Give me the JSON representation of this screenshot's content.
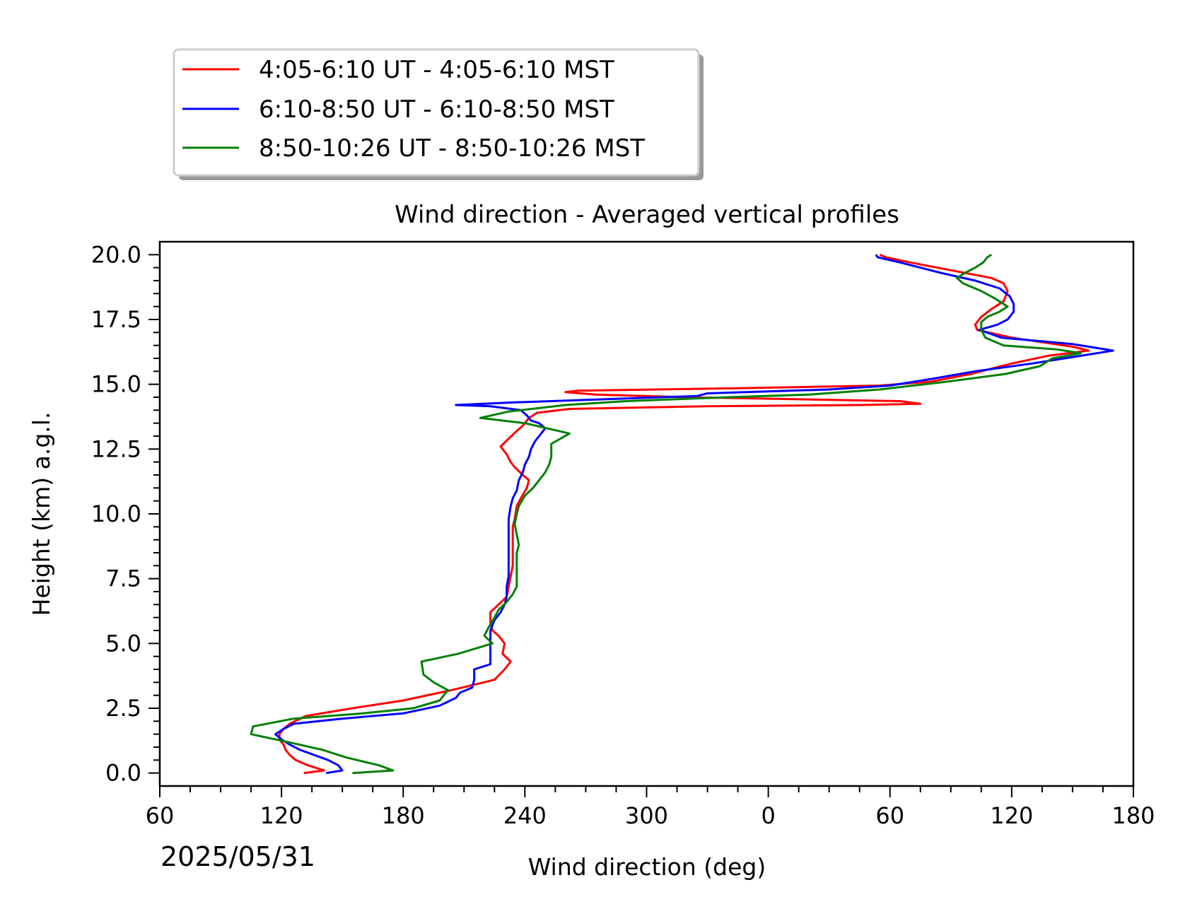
{
  "chart_data": {
    "type": "line",
    "title": "Wind direction - Averaged vertical profiles",
    "xlabel": "Wind direction (deg)",
    "ylabel": "Height (km) a.g.l.",
    "date_label": "2025/05/31",
    "x_tick_labels": [
      "60",
      "120",
      "180",
      "240",
      "300",
      "0",
      "60",
      "120",
      "180"
    ],
    "y_tick_labels": [
      "0.0",
      "2.5",
      "5.0",
      "7.5",
      "10.0",
      "12.5",
      "15.0",
      "17.5",
      "20.0"
    ],
    "x_unwrapped_range": [
      60,
      540
    ],
    "ylim": [
      -0.5,
      20.5
    ],
    "grid": false,
    "legend_position": "above-left",
    "series": [
      {
        "name": "4:05-6:10 UT - 4:05-6:10 MST",
        "color": "#ff0000",
        "points": [
          [
            131,
            0.0
          ],
          [
            141,
            0.1
          ],
          [
            133,
            0.3
          ],
          [
            127,
            0.5
          ],
          [
            124,
            0.7
          ],
          [
            122,
            0.9
          ],
          [
            121,
            1.1
          ],
          [
            119,
            1.3
          ],
          [
            119,
            1.5
          ],
          [
            121,
            1.7
          ],
          [
            124,
            1.9
          ],
          [
            132,
            2.2
          ],
          [
            155,
            2.5
          ],
          [
            180,
            2.8
          ],
          [
            204,
            3.2
          ],
          [
            225,
            3.6
          ],
          [
            230,
            4.0
          ],
          [
            233,
            4.3
          ],
          [
            229,
            4.6
          ],
          [
            230,
            5.0
          ],
          [
            227,
            5.3
          ],
          [
            224,
            5.5
          ],
          [
            223,
            5.8
          ],
          [
            223,
            6.2
          ],
          [
            227,
            6.5
          ],
          [
            231,
            6.8
          ],
          [
            232,
            7.2
          ],
          [
            233,
            7.6
          ],
          [
            234,
            8.0
          ],
          [
            234,
            8.5
          ],
          [
            234,
            9.0
          ],
          [
            234,
            9.5
          ],
          [
            235,
            9.8
          ],
          [
            236,
            10.3
          ],
          [
            238,
            10.6
          ],
          [
            241,
            11.0
          ],
          [
            242,
            11.3
          ],
          [
            239,
            11.5
          ],
          [
            235,
            11.8
          ],
          [
            233,
            12.0
          ],
          [
            231,
            12.3
          ],
          [
            228,
            12.6
          ],
          [
            232,
            12.9
          ],
          [
            236,
            13.2
          ],
          [
            239,
            13.4
          ],
          [
            242,
            13.7
          ],
          [
            246,
            13.9
          ],
          [
            262,
            14.05
          ],
          [
            330,
            14.15
          ],
          [
            405,
            14.2
          ],
          [
            435,
            14.25
          ],
          [
            425,
            14.35
          ],
          [
            320,
            14.5
          ],
          [
            275,
            14.6
          ],
          [
            260,
            14.7
          ],
          [
            266,
            14.75
          ],
          [
            345,
            14.85
          ],
          [
            415,
            14.95
          ],
          [
            440,
            15.1
          ],
          [
            460,
            15.4
          ],
          [
            480,
            15.8
          ],
          [
            498,
            16.1
          ],
          [
            518,
            16.3
          ],
          [
            510,
            16.45
          ],
          [
            480,
            16.8
          ],
          [
            463,
            17.1
          ],
          [
            462,
            17.3
          ],
          [
            465,
            17.6
          ],
          [
            470,
            17.9
          ],
          [
            476,
            18.2
          ],
          [
            478,
            18.6
          ],
          [
            476,
            18.9
          ],
          [
            470,
            19.1
          ],
          [
            450,
            19.4
          ],
          [
            430,
            19.7
          ],
          [
            418,
            19.9
          ],
          [
            415,
            20.0
          ]
        ]
      },
      {
        "name": "6:10-8:50 UT - 6:10-8:50 MST",
        "color": "#0000ff",
        "points": [
          [
            142,
            0.0
          ],
          [
            150,
            0.1
          ],
          [
            148,
            0.3
          ],
          [
            143,
            0.5
          ],
          [
            136,
            0.7
          ],
          [
            129,
            0.9
          ],
          [
            124,
            1.1
          ],
          [
            120,
            1.3
          ],
          [
            117,
            1.5
          ],
          [
            121,
            1.7
          ],
          [
            126,
            1.9
          ],
          [
            150,
            2.1
          ],
          [
            180,
            2.3
          ],
          [
            198,
            2.6
          ],
          [
            206,
            2.9
          ],
          [
            208,
            3.1
          ],
          [
            214,
            3.3
          ],
          [
            215,
            3.6
          ],
          [
            215,
            4.0
          ],
          [
            223,
            4.2
          ],
          [
            223,
            4.5
          ],
          [
            223,
            4.8
          ],
          [
            223,
            5.0
          ],
          [
            223,
            5.3
          ],
          [
            223,
            5.5
          ],
          [
            225,
            5.9
          ],
          [
            228,
            6.2
          ],
          [
            230,
            6.5
          ],
          [
            231,
            6.8
          ],
          [
            231,
            7.2
          ],
          [
            232,
            7.6
          ],
          [
            232,
            8.0
          ],
          [
            232,
            8.5
          ],
          [
            232,
            9.0
          ],
          [
            232,
            9.5
          ],
          [
            232,
            9.8
          ],
          [
            233,
            10.3
          ],
          [
            234,
            10.6
          ],
          [
            236,
            10.9
          ],
          [
            237,
            11.3
          ],
          [
            239,
            11.6
          ],
          [
            240,
            11.9
          ],
          [
            242,
            12.2
          ],
          [
            243,
            12.5
          ],
          [
            245,
            12.8
          ],
          [
            247,
            13.0
          ],
          [
            250,
            13.3
          ],
          [
            247,
            13.5
          ],
          [
            243,
            13.6
          ],
          [
            241,
            13.8
          ],
          [
            238,
            14.0
          ],
          [
            223,
            14.15
          ],
          [
            206,
            14.2
          ],
          [
            235,
            14.3
          ],
          [
            290,
            14.45
          ],
          [
            325,
            14.55
          ],
          [
            330,
            14.65
          ],
          [
            390,
            14.8
          ],
          [
            420,
            14.95
          ],
          [
            440,
            15.2
          ],
          [
            462,
            15.5
          ],
          [
            490,
            15.8
          ],
          [
            522,
            16.2
          ],
          [
            530,
            16.3
          ],
          [
            510,
            16.55
          ],
          [
            475,
            16.8
          ],
          [
            464,
            17.1
          ],
          [
            473,
            17.3
          ],
          [
            478,
            17.5
          ],
          [
            481,
            17.8
          ],
          [
            481,
            18.1
          ],
          [
            479,
            18.4
          ],
          [
            474,
            18.7
          ],
          [
            462,
            19.0
          ],
          [
            445,
            19.3
          ],
          [
            425,
            19.7
          ],
          [
            414,
            19.9
          ],
          [
            413,
            20.0
          ]
        ]
      },
      {
        "name": "8:50-10:26 UT - 8:50-10:26 MST",
        "color": "#008000",
        "points": [
          [
            155,
            0.0
          ],
          [
            175,
            0.1
          ],
          [
            168,
            0.3
          ],
          [
            152,
            0.6
          ],
          [
            140,
            0.9
          ],
          [
            123,
            1.2
          ],
          [
            105,
            1.5
          ],
          [
            106,
            1.8
          ],
          [
            126,
            2.1
          ],
          [
            160,
            2.3
          ],
          [
            185,
            2.5
          ],
          [
            198,
            2.8
          ],
          [
            202,
            3.2
          ],
          [
            195,
            3.5
          ],
          [
            190,
            3.8
          ],
          [
            189,
            4.3
          ],
          [
            207,
            4.6
          ],
          [
            224,
            5.0
          ],
          [
            220,
            5.3
          ],
          [
            222,
            5.6
          ],
          [
            225,
            6.0
          ],
          [
            227,
            6.3
          ],
          [
            231,
            6.6
          ],
          [
            234,
            6.9
          ],
          [
            236,
            7.2
          ],
          [
            236,
            7.6
          ],
          [
            236,
            8.0
          ],
          [
            236,
            8.5
          ],
          [
            237,
            8.8
          ],
          [
            236,
            9.2
          ],
          [
            235,
            9.6
          ],
          [
            236,
            10.0
          ],
          [
            237,
            10.3
          ],
          [
            240,
            10.7
          ],
          [
            244,
            11.0
          ],
          [
            247,
            11.3
          ],
          [
            250,
            11.6
          ],
          [
            252,
            11.9
          ],
          [
            253,
            12.2
          ],
          [
            253,
            12.5
          ],
          [
            253,
            12.7
          ],
          [
            262,
            13.1
          ],
          [
            240,
            13.5
          ],
          [
            218,
            13.7
          ],
          [
            232,
            13.95
          ],
          [
            260,
            14.2
          ],
          [
            290,
            14.35
          ],
          [
            340,
            14.5
          ],
          [
            380,
            14.6
          ],
          [
            415,
            14.8
          ],
          [
            448,
            15.1
          ],
          [
            477,
            15.4
          ],
          [
            494,
            15.7
          ],
          [
            500,
            16.0
          ],
          [
            514,
            16.2
          ],
          [
            502,
            16.35
          ],
          [
            476,
            16.5
          ],
          [
            467,
            16.8
          ],
          [
            465,
            17.1
          ],
          [
            465,
            17.4
          ],
          [
            468,
            17.6
          ],
          [
            474,
            17.8
          ],
          [
            478,
            18.0
          ],
          [
            472,
            18.3
          ],
          [
            465,
            18.6
          ],
          [
            456,
            18.9
          ],
          [
            453,
            19.1
          ],
          [
            457,
            19.3
          ],
          [
            462,
            19.5
          ],
          [
            466,
            19.7
          ],
          [
            468,
            19.9
          ],
          [
            470,
            20.0
          ]
        ]
      }
    ]
  }
}
